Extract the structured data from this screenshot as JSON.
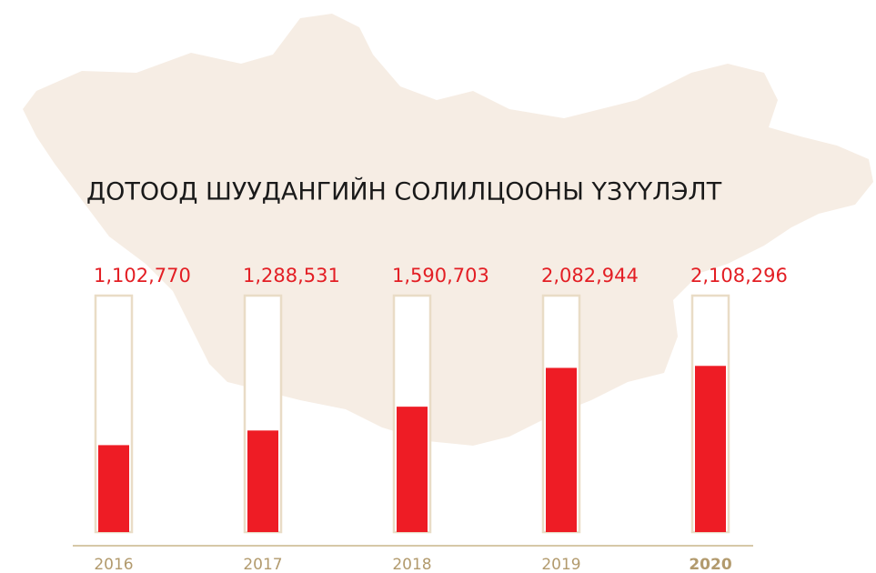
{
  "chart_data": {
    "type": "bar",
    "title": "ДОТООД ШУУДАНГИЙН СОЛИЛЦООНЫ ҮЗҮҮЛЭЛТ",
    "categories": [
      "2016",
      "2017",
      "2018",
      "2019",
      "2020"
    ],
    "values": [
      1102770,
      1288531,
      1590703,
      2082944,
      2108296
    ],
    "value_labels": [
      "1,102,770",
      "1,288,531",
      "1,590,703",
      "2,082,944",
      "2,108,296"
    ],
    "color": "#ee1c25",
    "ylim": [
      0,
      3000000
    ]
  }
}
